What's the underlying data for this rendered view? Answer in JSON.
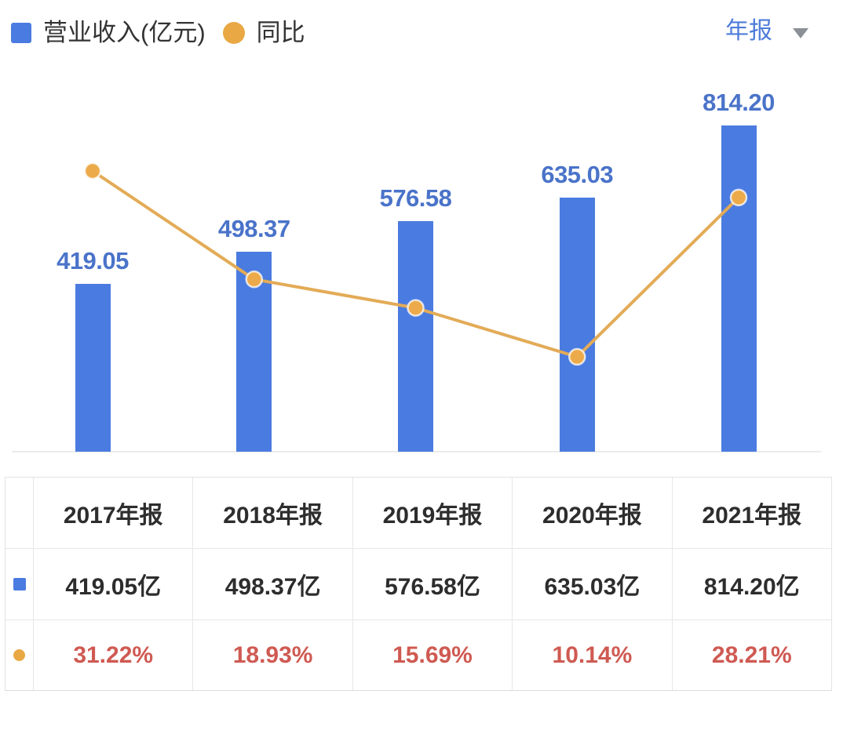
{
  "legend": {
    "items": [
      {
        "label": "营业收入(亿元)",
        "shape": "square",
        "color": "#4a7be0"
      },
      {
        "label": "同比",
        "shape": "circle",
        "color": "#e9a843"
      }
    ]
  },
  "period_selector": {
    "label": "年报",
    "icon": "caret-down-icon"
  },
  "chart_data": {
    "type": "bar",
    "subtype": "bar-with-line-overlay",
    "categories": [
      "2017年报",
      "2018年报",
      "2019年报",
      "2020年报",
      "2021年报"
    ],
    "series": [
      {
        "name": "营业收入(亿元)",
        "type": "bar",
        "unit": "亿元",
        "color": "#4a7be0",
        "values": [
          419.05,
          498.37,
          576.58,
          635.03,
          814.2
        ],
        "data_labels": [
          "419.05",
          "498.37",
          "576.58",
          "635.03",
          "814.20"
        ]
      },
      {
        "name": "同比",
        "type": "line",
        "unit": "%",
        "color": "#e9a843",
        "values": [
          31.22,
          18.93,
          15.69,
          10.14,
          28.21
        ]
      }
    ],
    "title": "",
    "xlabel": "",
    "ylabel": "",
    "axes_shown": false,
    "grid": false,
    "legend_position": "top-left",
    "bar_value_labels": "above bars, blue",
    "line_point_markers": "filled orange dots"
  },
  "table": {
    "columns": [
      "2017年报",
      "2018年报",
      "2019年报",
      "2020年报",
      "2021年报"
    ],
    "rows": [
      {
        "icon": "revenue-swatch",
        "icon_color": "#4a7be0",
        "values": [
          "419.05亿",
          "498.37亿",
          "576.58亿",
          "635.03亿",
          "814.20亿"
        ]
      },
      {
        "icon": "yoy-dot",
        "icon_color": "#e9a843",
        "text_color": "#cf5a52",
        "values": [
          "31.22%",
          "18.93%",
          "15.69%",
          "10.14%",
          "28.21%"
        ]
      }
    ]
  },
  "colors": {
    "bar_blue": "#4a7be0",
    "label_blue": "#4a73c9",
    "selector_blue": "#4e7cd9",
    "line_orange": "#e3ab57",
    "dot_orange": "#ecaa4a",
    "ratio_red": "#cf5a52",
    "text_dark": "#2d2d2d",
    "border_gray": "#e7e7e7",
    "baseline_gray": "#ebebeb"
  }
}
